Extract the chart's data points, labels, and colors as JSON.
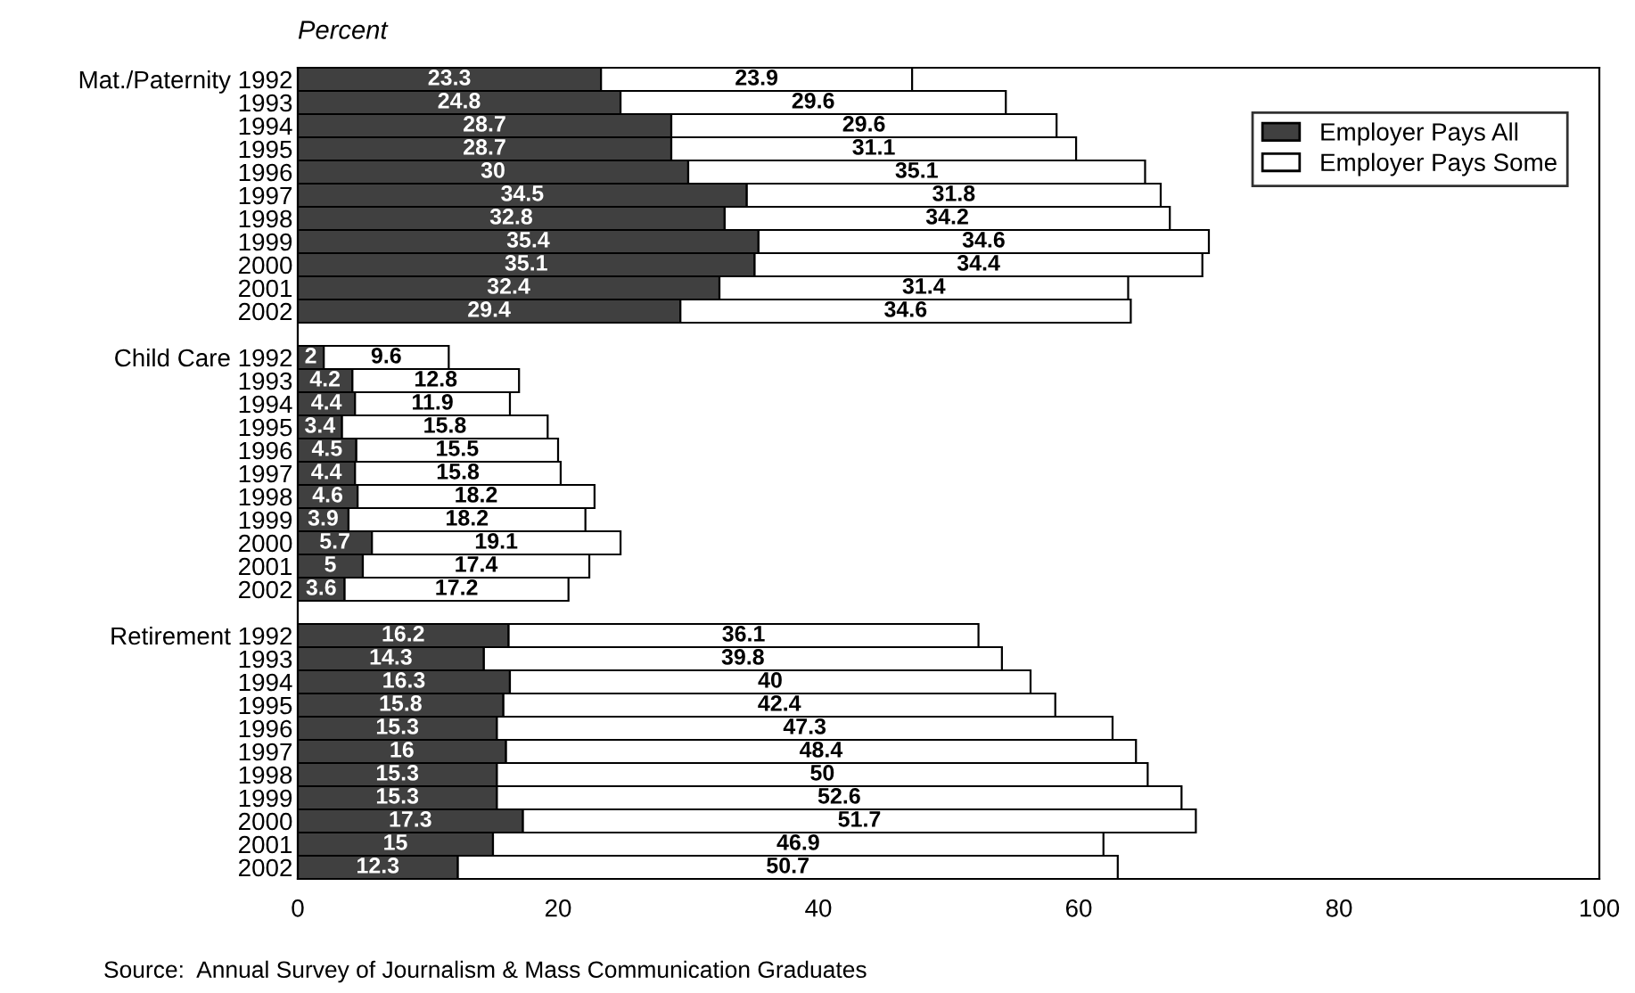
{
  "chart_data": {
    "type": "bar",
    "orientation": "horizontal",
    "stacked": true,
    "title": "Percent",
    "categories": [
      "Mat./Paternity 1992",
      "1993",
      "1994",
      "1995",
      "1996",
      "1997",
      "1998",
      "1999",
      "2000",
      "2001",
      "2002",
      null,
      "Child Care 1992",
      "1993",
      "1994",
      "1995",
      "1996",
      "1997",
      "1998",
      "1999",
      "2000",
      "2001",
      "2002",
      null,
      "Retirement 1992",
      "1993",
      "1994",
      "1995",
      "1996",
      "1997",
      "1998",
      "1999",
      "2000",
      "2001",
      "2002"
    ],
    "series": [
      {
        "name": "Employer Pays All",
        "color": "#404040",
        "values": [
          23.3,
          24.8,
          28.7,
          28.7,
          30,
          34.5,
          32.8,
          35.4,
          35.1,
          32.4,
          29.4,
          null,
          2,
          4.2,
          4.4,
          3.4,
          4.5,
          4.4,
          4.6,
          3.9,
          5.7,
          5,
          3.6,
          null,
          16.2,
          14.3,
          16.3,
          15.8,
          15.3,
          16,
          15.3,
          15.3,
          17.3,
          15,
          12.3
        ]
      },
      {
        "name": "Employer Pays Some",
        "color": "#ffffff",
        "values": [
          23.9,
          29.6,
          29.6,
          31.1,
          35.1,
          31.8,
          34.2,
          34.6,
          34.4,
          31.4,
          34.6,
          null,
          9.6,
          12.8,
          11.9,
          15.8,
          15.5,
          15.8,
          18.2,
          18.2,
          19.1,
          17.4,
          17.2,
          null,
          36.1,
          39.8,
          40,
          42.4,
          47.3,
          48.4,
          50,
          52.6,
          51.7,
          46.9,
          50.7
        ]
      }
    ],
    "xlim": [
      0,
      100
    ],
    "xticks": [
      0,
      20,
      40,
      60,
      80,
      100
    ],
    "grid": false,
    "legend": "top right",
    "data_labels": true,
    "annotations": [
      "Source:  Annual Survey of Journalism & Mass Communication Graduates"
    ]
  }
}
